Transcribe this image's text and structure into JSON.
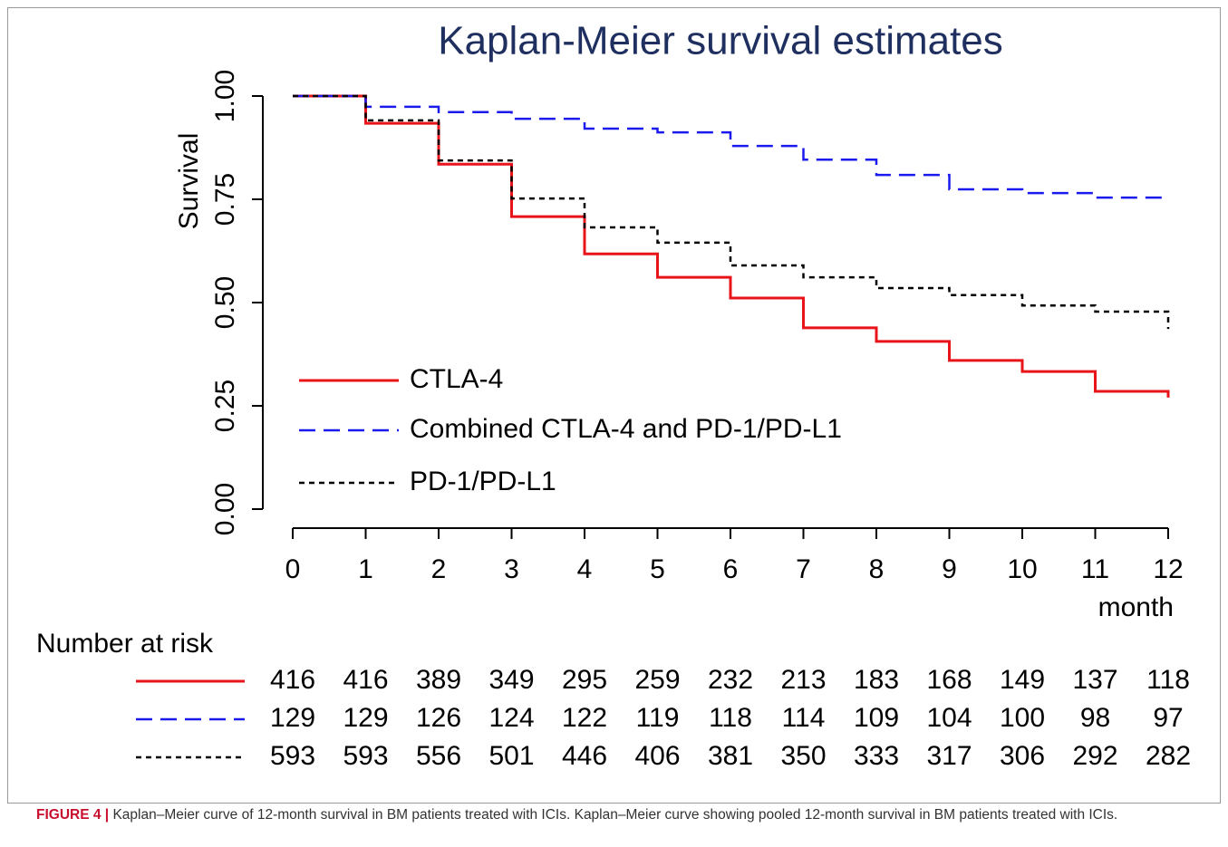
{
  "chart_data": {
    "type": "step",
    "title": "Kaplan-Meier survival estimates",
    "ylabel": "Survival",
    "xlabel": "month",
    "x": [
      0,
      1,
      2,
      3,
      4,
      5,
      6,
      7,
      8,
      9,
      10,
      11,
      12
    ],
    "xlim": [
      0,
      12
    ],
    "xticks": [
      0,
      1,
      2,
      3,
      4,
      5,
      6,
      7,
      8,
      9,
      10,
      11,
      12
    ],
    "ylim": [
      0,
      1
    ],
    "yticks": [
      {
        "value": 0,
        "label": "0.00"
      },
      {
        "value": 0.25,
        "label": "0.25"
      },
      {
        "value": 0.5,
        "label": "0.50"
      },
      {
        "value": 0.75,
        "label": "0.75"
      },
      {
        "value": 1,
        "label": "1.00"
      }
    ],
    "series": [
      {
        "name": "CTLA-4",
        "color": "#e8141a",
        "dash": "solid",
        "values": [
          1.0,
          0.934,
          0.835,
          0.708,
          0.618,
          0.561,
          0.511,
          0.439,
          0.406,
          0.36,
          0.333,
          0.285,
          0.27
        ]
      },
      {
        "name": "Combined CTLA-4 and PD-1/PD-L1",
        "color": "#1a1aef",
        "dash": "dashed",
        "values": [
          1.0,
          0.974,
          0.961,
          0.945,
          0.921,
          0.912,
          0.879,
          0.846,
          0.809,
          0.774,
          0.765,
          0.754,
          0.75
        ]
      },
      {
        "name": "PD-1/PD-L1",
        "color": "#000000",
        "dash": "dotted",
        "values": [
          1.0,
          0.941,
          0.844,
          0.752,
          0.682,
          0.645,
          0.59,
          0.561,
          0.535,
          0.518,
          0.493,
          0.478,
          0.436
        ]
      }
    ],
    "legend": "lower left",
    "risk_table": {
      "title": "Number at risk",
      "rows": [
        [
          416,
          416,
          389,
          349,
          295,
          259,
          232,
          213,
          183,
          168,
          149,
          137,
          118
        ],
        [
          129,
          129,
          126,
          124,
          122,
          119,
          118,
          114,
          109,
          104,
          100,
          98,
          97
        ],
        [
          593,
          593,
          556,
          501,
          446,
          406,
          381,
          350,
          333,
          317,
          306,
          292,
          282
        ]
      ]
    }
  },
  "caption": {
    "label": "FIGURE 4 |",
    "text": "Kaplan–Meier curve of 12-month survival in BM patients treated with ICIs. Kaplan–Meier curve showing pooled 12-month survival in BM patients treated with ICIs."
  }
}
